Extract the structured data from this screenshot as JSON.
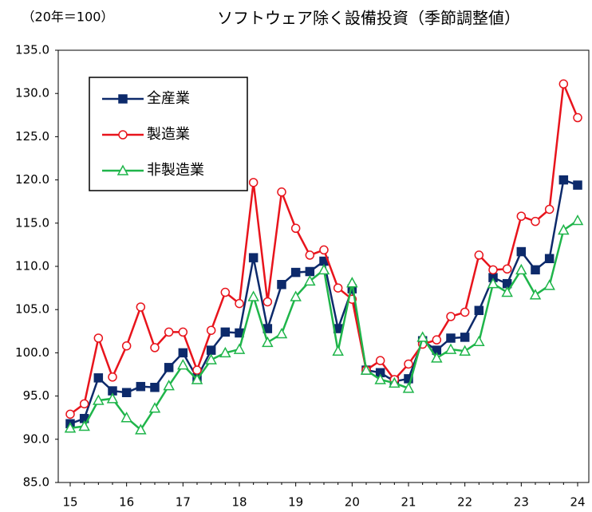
{
  "chart_data": {
    "type": "line",
    "title": "ソフトウェア除く設備投資（季節調整値）",
    "subtitle": "（20年＝100）",
    "categories": [
      "15",
      null,
      null,
      null,
      "16",
      null,
      null,
      null,
      "17",
      null,
      null,
      null,
      "18",
      null,
      null,
      null,
      "19",
      null,
      null,
      null,
      "20",
      null,
      null,
      null,
      "21",
      null,
      null,
      null,
      "22",
      null,
      null,
      null,
      "23",
      null,
      null,
      null,
      "24"
    ],
    "series": [
      {
        "name": "全産業",
        "color": "#0d2a6b",
        "marker": "square",
        "values": [
          91.8,
          92.4,
          97.1,
          95.6,
          95.4,
          96.1,
          96.0,
          98.3,
          100.0,
          97.1,
          100.3,
          102.4,
          102.3,
          111.0,
          102.8,
          107.9,
          109.3,
          109.4,
          110.6,
          102.8,
          107.4,
          98.0,
          97.7,
          96.7,
          97.0,
          101.4,
          100.3,
          101.7,
          101.8,
          104.9,
          108.7,
          108.0,
          111.7,
          109.6,
          110.9,
          120.0,
          119.4
        ]
      },
      {
        "name": "製造業",
        "color": "#e8141c",
        "marker": "circle",
        "values": [
          92.9,
          94.1,
          101.7,
          97.2,
          100.8,
          105.3,
          100.6,
          102.4,
          102.4,
          98.0,
          102.6,
          107.0,
          105.7,
          119.7,
          105.9,
          118.6,
          114.4,
          111.3,
          111.9,
          107.5,
          106.2,
          98.0,
          99.1,
          96.9,
          98.7,
          101.0,
          101.5,
          104.2,
          104.7,
          111.3,
          109.6,
          109.7,
          115.8,
          115.2,
          116.6,
          131.1,
          127.2
        ]
      },
      {
        "name": "非製造業",
        "color": "#1fb54a",
        "marker": "triangle",
        "values": [
          91.3,
          91.5,
          94.5,
          94.7,
          92.5,
          91.1,
          93.6,
          96.2,
          98.6,
          96.9,
          99.2,
          100.0,
          100.4,
          106.5,
          101.2,
          102.2,
          106.5,
          108.3,
          109.6,
          100.2,
          108.1,
          98.0,
          96.9,
          96.5,
          95.9,
          101.8,
          99.4,
          100.4,
          100.2,
          101.3,
          108.0,
          107.0,
          109.6,
          106.7,
          107.8,
          114.2,
          115.3
        ]
      }
    ],
    "ylim": [
      85,
      135
    ],
    "yticks": [
      {
        "value": 85,
        "label": "85.0"
      },
      {
        "value": 90,
        "label": "90.0"
      },
      {
        "value": 95,
        "label": "95.0"
      },
      {
        "value": 100,
        "label": "100.0"
      },
      {
        "value": 105,
        "label": "105.0"
      },
      {
        "value": 110,
        "label": "110.0"
      },
      {
        "value": 115,
        "label": "115.0"
      },
      {
        "value": 120,
        "label": "120.0"
      },
      {
        "value": 125,
        "label": "125.0"
      },
      {
        "value": 130,
        "label": "130.0"
      },
      {
        "value": 135,
        "label": "135.0"
      }
    ],
    "legend": "upper left"
  }
}
